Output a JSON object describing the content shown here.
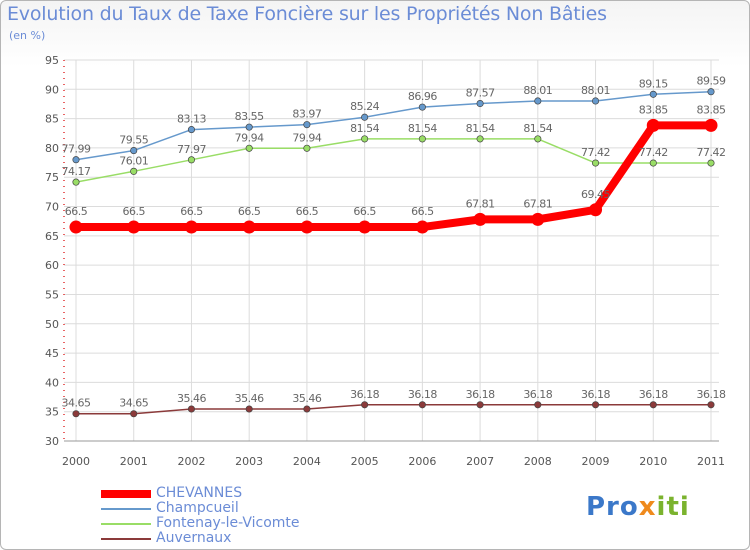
{
  "chart_data": {
    "type": "line",
    "title": "Evolution du Taux de Taxe Foncière sur les Propriétés Non Bâties",
    "subtitle": "(en %)",
    "x": [
      "2000",
      "2001",
      "2002",
      "2003",
      "2004",
      "2005",
      "2006",
      "2007",
      "2008",
      "2009",
      "2010",
      "2011"
    ],
    "ylim": [
      30,
      95
    ],
    "yticks": [
      30,
      35,
      40,
      45,
      50,
      55,
      60,
      65,
      70,
      75,
      80,
      85,
      90,
      95
    ],
    "grid": true,
    "legend_position": "bottom-left",
    "series": [
      {
        "name": "CHEVANNES",
        "color": "#ff0000",
        "values": [
          66.5,
          66.5,
          66.5,
          66.5,
          66.5,
          66.5,
          66.5,
          67.81,
          67.81,
          69.45,
          83.85,
          83.85
        ],
        "labels": [
          "66.5",
          "66.5",
          "66.5",
          "66.5",
          "66.5",
          "66.5",
          "66.5",
          "67.81",
          "67.81",
          "69.45",
          "83.85",
          "83.85"
        ]
      },
      {
        "name": "Champcueil",
        "color": "#6699cc",
        "values": [
          77.99,
          79.55,
          83.13,
          83.55,
          83.97,
          85.24,
          86.96,
          87.57,
          88.01,
          88.01,
          89.15,
          89.59
        ],
        "labels": [
          "77.99",
          "79.55",
          "83.13",
          "83.55",
          "83.97",
          "85.24",
          "86.96",
          "87.57",
          "88.01",
          "88.01",
          "89.15",
          "89.59"
        ]
      },
      {
        "name": "Fontenay-le-Vicomte",
        "color": "#99dd66",
        "values": [
          74.17,
          76.01,
          77.97,
          79.94,
          79.94,
          81.54,
          81.54,
          81.54,
          81.54,
          77.42,
          77.42,
          77.42
        ],
        "labels": [
          "74.17",
          "76.01",
          "77.97",
          "79.94",
          "79.94",
          "81.54",
          "81.54",
          "81.54",
          "81.54",
          "77.42",
          "77.42",
          "77.42"
        ]
      },
      {
        "name": "Auvernaux",
        "color": "#8b3a3a",
        "values": [
          34.65,
          34.65,
          35.46,
          35.46,
          35.46,
          36.18,
          36.18,
          36.18,
          36.18,
          36.18,
          36.18,
          36.18
        ],
        "labels": [
          "34.65",
          "34.65",
          "35.46",
          "35.46",
          "35.46",
          "36.18",
          "36.18",
          "36.18",
          "36.18",
          "36.18",
          "36.18",
          "36.18"
        ]
      }
    ]
  },
  "logo_text": [
    "Pro",
    "x",
    "iti"
  ]
}
